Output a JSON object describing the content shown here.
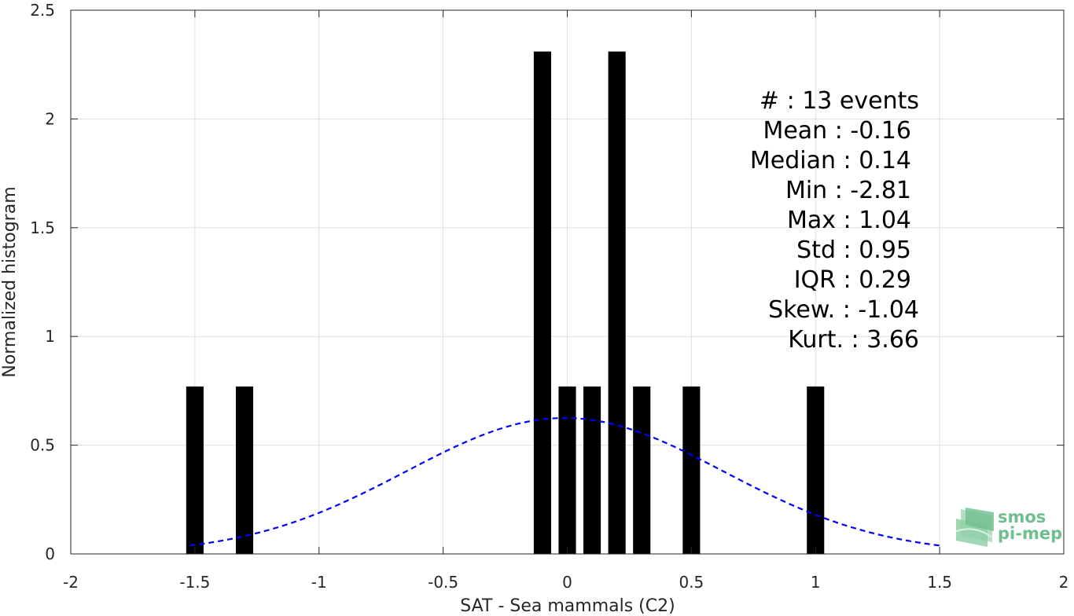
{
  "chart_data": {
    "type": "bar",
    "xlabel": "SAT - Sea mammals (C2)",
    "ylabel": "Normalized histogram",
    "xlim": [
      -2,
      2
    ],
    "ylim": [
      0,
      2.5
    ],
    "xticks": [
      -2,
      -1.5,
      -1,
      -0.5,
      0,
      0.5,
      1,
      1.5,
      2
    ],
    "xtick_labels": [
      "-2",
      "-1.5",
      "-1",
      "-0.5",
      "0",
      "0.5",
      "1",
      "1.5",
      "2"
    ],
    "yticks": [
      0,
      0.5,
      1,
      1.5,
      2,
      2.5
    ],
    "ytick_labels": [
      "0",
      "0.5",
      "1",
      "1.5",
      "2",
      "2.5"
    ],
    "grid": true,
    "bar_width": 0.07,
    "bar_color": "#000000",
    "bars": [
      {
        "x": -1.5,
        "value": 0.77
      },
      {
        "x": -1.3,
        "value": 0.77
      },
      {
        "x": -0.1,
        "value": 2.31
      },
      {
        "x": 0.0,
        "value": 0.77
      },
      {
        "x": 0.1,
        "value": 0.77
      },
      {
        "x": 0.2,
        "value": 2.31
      },
      {
        "x": 0.3,
        "value": 0.77
      },
      {
        "x": 0.5,
        "value": 0.77
      },
      {
        "x": 1.0,
        "value": 0.77
      }
    ],
    "fit_curve": {
      "style": "dashed",
      "color": "#0000ff",
      "mean": -0.01,
      "std": 0.64,
      "peak": 0.625,
      "x_range": [
        -1.52,
        1.5
      ]
    },
    "stats_lines": [
      "#  : 13 events",
      "Mean : -0.16",
      "Median : 0.14",
      "Min : -2.81",
      "Max : 1.04",
      "Std : 0.95",
      "IQR : 0.29",
      "Skew. : -1.04",
      "Kurt. : 3.66"
    ]
  },
  "logo": {
    "line1": "smos",
    "line2": "pi-mep",
    "color": "#6fbf8e"
  }
}
